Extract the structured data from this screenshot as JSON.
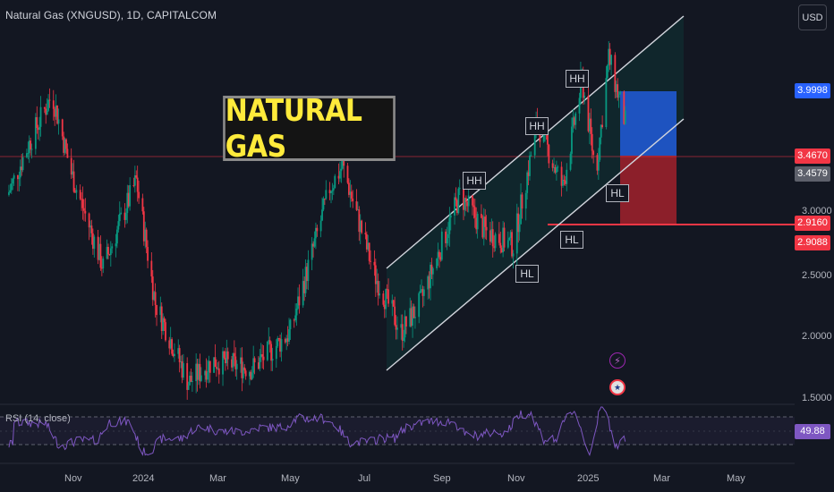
{
  "header": {
    "title": "Natural Gas (XNGUSD), 1D, CAPITALCOM"
  },
  "currency": "USD",
  "banner": {
    "text": "NATURAL GAS"
  },
  "price_tags": [
    {
      "label": "3.9998",
      "bg": "#2962ff"
    },
    {
      "label": "3.4670",
      "bg": "#f23645"
    },
    {
      "label": "3.4579",
      "bg": "#5d606b"
    },
    {
      "label": "2.9160",
      "bg": "#f23645"
    },
    {
      "label": "2.9088",
      "bg": "#f23645"
    }
  ],
  "rsi": {
    "label": "RSI (14, close)",
    "value": "49.88",
    "color": "#7e57c2"
  },
  "pivots": [
    "HH",
    "HH",
    "HH",
    "HL",
    "HL",
    "HL"
  ],
  "colors": {
    "background": "#131722",
    "up_candle": "#089981",
    "down_candle": "#f23645",
    "channel": "#d1d4dc",
    "target_zone": "#1e53c0",
    "stop_zone": "#8c1f2a",
    "rsi_line": "#7e57c2"
  },
  "event_icons": [
    "lightning-icon",
    "us-flag-icon"
  ],
  "chart_data": {
    "type": "candlestick",
    "ylim": [
      1.5,
      4.3
    ],
    "y_ticks": [
      {
        "label": "3.0000",
        "value": 3.0
      },
      {
        "label": "2.5000",
        "value": 2.5
      },
      {
        "label": "2.0000",
        "value": 2.0
      },
      {
        "label": "1.5000",
        "value": 1.5
      }
    ],
    "x_ticks": [
      "Nov",
      "2024",
      "Mar",
      "May",
      "Jul",
      "Sep",
      "Nov",
      "2025",
      "Mar",
      "May"
    ],
    "close_path": [
      {
        "date": "2023-10-01",
        "close": 2.95
      },
      {
        "date": "2023-10-20",
        "close": 3.35
      },
      {
        "date": "2023-11-05",
        "close": 3.65
      },
      {
        "date": "2023-11-20",
        "close": 3.1
      },
      {
        "date": "2023-12-15",
        "close": 2.45
      },
      {
        "date": "2024-01-10",
        "close": 3.05
      },
      {
        "date": "2024-01-25",
        "close": 2.2
      },
      {
        "date": "2024-02-20",
        "close": 1.65
      },
      {
        "date": "2024-03-10",
        "close": 1.8
      },
      {
        "date": "2024-04-10",
        "close": 1.75
      },
      {
        "date": "2024-05-10",
        "close": 2.0
      },
      {
        "date": "2024-06-10",
        "close": 3.0
      },
      {
        "date": "2024-06-20",
        "close": 3.15
      },
      {
        "date": "2024-07-15",
        "close": 2.4
      },
      {
        "date": "2024-08-05",
        "close": 2.0
      },
      {
        "date": "2024-08-20",
        "close": 2.2
      },
      {
        "date": "2024-09-20",
        "close": 2.95
      },
      {
        "date": "2024-10-10",
        "close": 2.7
      },
      {
        "date": "2024-11-01",
        "close": 2.6
      },
      {
        "date": "2024-11-20",
        "close": 3.45
      },
      {
        "date": "2024-12-10",
        "close": 3.0
      },
      {
        "date": "2024-12-25",
        "close": 3.75
      },
      {
        "date": "2025-01-05",
        "close": 3.1
      },
      {
        "date": "2025-01-15",
        "close": 3.9
      },
      {
        "date": "2025-01-28",
        "close": 3.45
      }
    ],
    "rsi_range": [
      0,
      100
    ],
    "rsi_last": 49.88
  }
}
